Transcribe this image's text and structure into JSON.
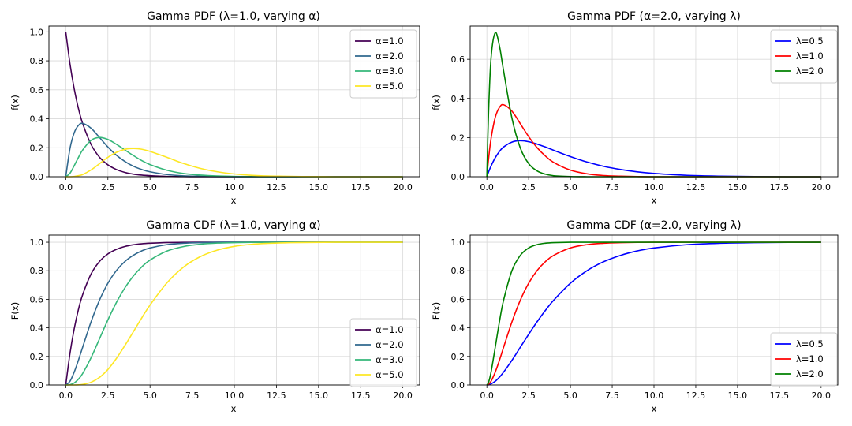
{
  "chart_data": [
    {
      "type": "line",
      "title": "Gamma PDF (λ=1.0, varying α)",
      "xlabel": "x",
      "ylabel": "f(x)",
      "xlim": [
        -1,
        21
      ],
      "ylim": [
        0,
        1.04
      ],
      "xticks": [
        "0.0",
        "2.5",
        "5.0",
        "7.5",
        "10.0",
        "12.5",
        "15.0",
        "17.5",
        "20.0"
      ],
      "yticks": [
        "0.0",
        "0.2",
        "0.4",
        "0.6",
        "0.8",
        "1.0"
      ],
      "grid": true,
      "legend": "top-right",
      "x": [
        0,
        0.25,
        0.5,
        0.75,
        1,
        1.5,
        2,
        2.5,
        3,
        3.5,
        4,
        4.5,
        5,
        6,
        7,
        8,
        9,
        10,
        11,
        12,
        13,
        14,
        16,
        18,
        20
      ],
      "series": [
        {
          "name": "α=1.0",
          "color": "#440154",
          "values": [
            1.0,
            0.779,
            0.607,
            0.472,
            0.368,
            0.223,
            0.135,
            0.082,
            0.05,
            0.03,
            0.018,
            0.011,
            0.007,
            0.002,
            0.001,
            0.0,
            0.0,
            0.0,
            0.0,
            0.0,
            0.0,
            0.0,
            0.0,
            0.0,
            0.0
          ]
        },
        {
          "name": "α=2.0",
          "color": "#31688e",
          "values": [
            0.0,
            0.195,
            0.303,
            0.354,
            0.368,
            0.335,
            0.271,
            0.205,
            0.149,
            0.106,
            0.073,
            0.05,
            0.034,
            0.015,
            0.006,
            0.003,
            0.001,
            0.0,
            0.0,
            0.0,
            0.0,
            0.0,
            0.0,
            0.0,
            0.0
          ]
        },
        {
          "name": "α=3.0",
          "color": "#35b779",
          "values": [
            0.0,
            0.024,
            0.076,
            0.133,
            0.184,
            0.251,
            0.271,
            0.257,
            0.224,
            0.185,
            0.147,
            0.112,
            0.084,
            0.045,
            0.022,
            0.011,
            0.005,
            0.002,
            0.001,
            0.0,
            0.0,
            0.0,
            0.0,
            0.0,
            0.0
          ]
        },
        {
          "name": "α=5.0",
          "color": "#fde725",
          "values": [
            0.0,
            0.0,
            0.002,
            0.007,
            0.015,
            0.047,
            0.09,
            0.134,
            0.168,
            0.189,
            0.195,
            0.19,
            0.175,
            0.134,
            0.091,
            0.057,
            0.034,
            0.019,
            0.01,
            0.005,
            0.003,
            0.001,
            0.0,
            0.0,
            0.0
          ]
        }
      ]
    },
    {
      "type": "line",
      "title": "Gamma PDF (α=2.0, varying λ)",
      "xlabel": "x",
      "ylabel": "f(x)",
      "xlim": [
        -1,
        21
      ],
      "ylim": [
        0,
        0.77
      ],
      "xticks": [
        "0.0",
        "2.5",
        "5.0",
        "7.5",
        "10.0",
        "12.5",
        "15.0",
        "17.5",
        "20.0"
      ],
      "yticks": [
        "0.0",
        "0.2",
        "0.4",
        "0.6"
      ],
      "grid": true,
      "legend": "top-right",
      "x": [
        0,
        0.1,
        0.25,
        0.5,
        0.75,
        1,
        1.5,
        2,
        2.5,
        3,
        3.5,
        4,
        5,
        6,
        7,
        8,
        9,
        10,
        12,
        14,
        16,
        18,
        20
      ],
      "series": [
        {
          "name": "λ=0.5",
          "color": "#0000ff",
          "values": [
            0.0,
            0.024,
            0.055,
            0.097,
            0.129,
            0.152,
            0.177,
            0.184,
            0.179,
            0.167,
            0.152,
            0.135,
            0.103,
            0.075,
            0.053,
            0.037,
            0.025,
            0.017,
            0.007,
            0.003,
            0.001,
            0.0,
            0.0
          ]
        },
        {
          "name": "λ=1.0",
          "color": "#ff0000",
          "values": [
            0.0,
            0.09,
            0.195,
            0.303,
            0.354,
            0.368,
            0.335,
            0.271,
            0.205,
            0.149,
            0.106,
            0.073,
            0.034,
            0.015,
            0.006,
            0.003,
            0.001,
            0.0,
            0.0,
            0.0,
            0.0,
            0.0,
            0.0
          ]
        },
        {
          "name": "λ=2.0",
          "color": "#008000",
          "values": [
            0.0,
            0.327,
            0.607,
            0.736,
            0.669,
            0.541,
            0.299,
            0.147,
            0.067,
            0.03,
            0.013,
            0.005,
            0.001,
            0.0,
            0.0,
            0.0,
            0.0,
            0.0,
            0.0,
            0.0,
            0.0,
            0.0,
            0.0
          ]
        }
      ]
    },
    {
      "type": "line",
      "title": "Gamma CDF (λ=1.0, varying α)",
      "xlabel": "x",
      "ylabel": "F(x)",
      "xlim": [
        -1,
        21
      ],
      "ylim": [
        0,
        1.05
      ],
      "xticks": [
        "0.0",
        "2.5",
        "5.0",
        "7.5",
        "10.0",
        "12.5",
        "15.0",
        "17.5",
        "20.0"
      ],
      "yticks": [
        "0.0",
        "0.2",
        "0.4",
        "0.6",
        "0.8",
        "1.0"
      ],
      "grid": true,
      "legend": "bottom-right",
      "x": [
        0,
        0.25,
        0.5,
        0.75,
        1,
        1.5,
        2,
        2.5,
        3,
        3.5,
        4,
        4.5,
        5,
        6,
        7,
        8,
        9,
        10,
        11,
        12,
        13,
        14,
        16,
        18,
        20
      ],
      "series": [
        {
          "name": "α=1.0",
          "color": "#440154",
          "values": [
            0.0,
            0.221,
            0.393,
            0.528,
            0.632,
            0.777,
            0.865,
            0.918,
            0.95,
            0.97,
            0.982,
            0.989,
            0.993,
            0.998,
            0.999,
            1.0,
            1.0,
            1.0,
            1.0,
            1.0,
            1.0,
            1.0,
            1.0,
            1.0,
            1.0
          ]
        },
        {
          "name": "α=2.0",
          "color": "#31688e",
          "values": [
            0.0,
            0.026,
            0.09,
            0.173,
            0.264,
            0.442,
            0.594,
            0.713,
            0.801,
            0.864,
            0.908,
            0.939,
            0.96,
            0.983,
            0.993,
            0.997,
            0.999,
            1.0,
            1.0,
            1.0,
            1.0,
            1.0,
            1.0,
            1.0,
            1.0
          ]
        },
        {
          "name": "α=3.0",
          "color": "#35b779",
          "values": [
            0.0,
            0.002,
            0.014,
            0.041,
            0.08,
            0.191,
            0.323,
            0.456,
            0.577,
            0.679,
            0.762,
            0.826,
            0.875,
            0.938,
            0.97,
            0.986,
            0.994,
            0.997,
            0.999,
            0.999,
            1.0,
            1.0,
            1.0,
            1.0,
            1.0
          ]
        },
        {
          "name": "α=5.0",
          "color": "#fde725",
          "values": [
            0.0,
            0.0,
            0.0,
            0.001,
            0.004,
            0.019,
            0.053,
            0.109,
            0.185,
            0.275,
            0.371,
            0.468,
            0.56,
            0.715,
            0.827,
            0.9,
            0.945,
            0.971,
            0.985,
            0.992,
            0.996,
            0.998,
            1.0,
            1.0,
            1.0
          ]
        }
      ]
    },
    {
      "type": "line",
      "title": "Gamma CDF (α=2.0, varying λ)",
      "xlabel": "x",
      "ylabel": "F(x)",
      "xlim": [
        -1,
        21
      ],
      "ylim": [
        0,
        1.05
      ],
      "xticks": [
        "0.0",
        "2.5",
        "5.0",
        "7.5",
        "10.0",
        "12.5",
        "15.0",
        "17.5",
        "20.0"
      ],
      "yticks": [
        "0.0",
        "0.2",
        "0.4",
        "0.6",
        "0.8",
        "1.0"
      ],
      "grid": true,
      "legend": "bottom-right",
      "x": [
        0,
        0.1,
        0.25,
        0.5,
        0.75,
        1,
        1.5,
        2,
        2.5,
        3,
        3.5,
        4,
        5,
        6,
        7,
        8,
        9,
        10,
        12,
        14,
        16,
        18,
        20
      ],
      "series": [
        {
          "name": "λ=0.5",
          "color": "#0000ff",
          "values": [
            0.0,
            0.001,
            0.007,
            0.026,
            0.055,
            0.09,
            0.173,
            0.264,
            0.355,
            0.442,
            0.522,
            0.594,
            0.713,
            0.801,
            0.864,
            0.908,
            0.939,
            0.96,
            0.983,
            0.993,
            0.997,
            0.999,
            1.0
          ]
        },
        {
          "name": "λ=1.0",
          "color": "#ff0000",
          "values": [
            0.0,
            0.005,
            0.026,
            0.09,
            0.173,
            0.264,
            0.442,
            0.594,
            0.713,
            0.801,
            0.864,
            0.908,
            0.96,
            0.983,
            0.993,
            0.997,
            0.999,
            1.0,
            1.0,
            1.0,
            1.0,
            1.0,
            1.0
          ]
        },
        {
          "name": "λ=2.0",
          "color": "#008000",
          "values": [
            0.0,
            0.018,
            0.09,
            0.264,
            0.442,
            0.594,
            0.801,
            0.908,
            0.96,
            0.983,
            0.993,
            0.997,
            1.0,
            1.0,
            1.0,
            1.0,
            1.0,
            1.0,
            1.0,
            1.0,
            1.0,
            1.0,
            1.0
          ]
        }
      ]
    }
  ]
}
